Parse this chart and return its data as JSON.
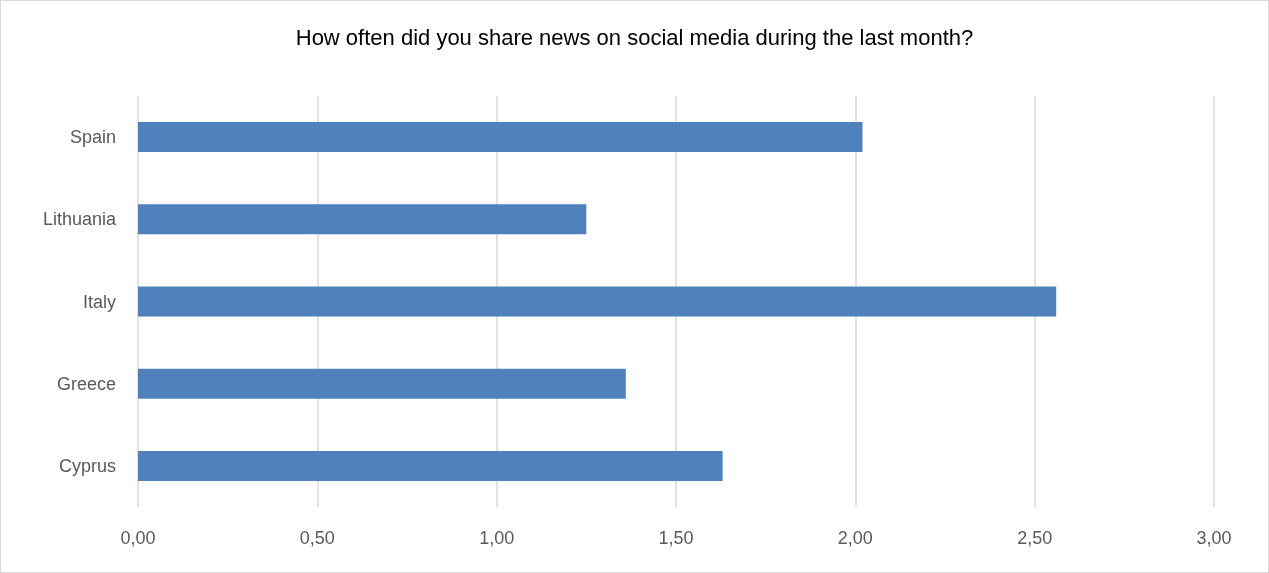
{
  "chart_data": {
    "type": "bar",
    "orientation": "horizontal",
    "title": "How often did you share news on social media during the last month?",
    "categories": [
      "Spain",
      "Lithuania",
      "Italy",
      "Greece",
      "Cyprus"
    ],
    "values": [
      2.02,
      1.25,
      2.56,
      1.36,
      1.63
    ],
    "color": "#4f81bd",
    "xlim": [
      0,
      3
    ],
    "xticks": [
      {
        "value": 0,
        "label": "0,00"
      },
      {
        "value": 0.5,
        "label": "0,50"
      },
      {
        "value": 1,
        "label": "1,00"
      },
      {
        "value": 1.5,
        "label": "1,50"
      },
      {
        "value": 2,
        "label": "2,00"
      },
      {
        "value": 2.5,
        "label": "2,50"
      },
      {
        "value": 3,
        "label": "3,00"
      }
    ],
    "grid": "x"
  }
}
